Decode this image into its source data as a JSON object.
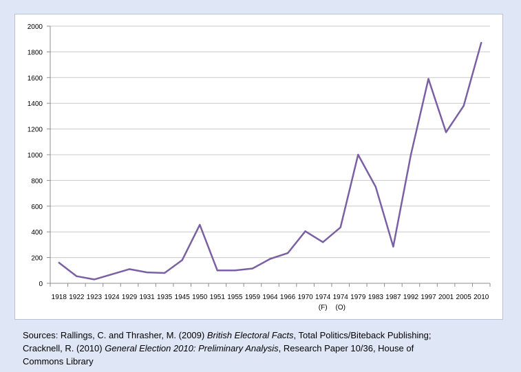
{
  "chart_data": {
    "type": "line",
    "title": "",
    "xlabel": "",
    "ylabel": "",
    "ylim": [
      0,
      2000
    ],
    "yticks": [
      0,
      200,
      400,
      600,
      800,
      1000,
      1200,
      1400,
      1600,
      1800,
      2000
    ],
    "grid": true,
    "legend": "none",
    "categories": [
      "1918",
      "1922",
      "1923",
      "1924",
      "1929",
      "1931",
      "1935",
      "1945",
      "1950",
      "1951",
      "1955",
      "1959",
      "1964",
      "1966",
      "1970",
      "1974",
      "1974",
      "1979",
      "1983",
      "1987",
      "1992",
      "1997",
      "2001",
      "2005",
      "2010"
    ],
    "category_sublabels": [
      "",
      "",
      "",
      "",
      "",
      "",
      "",
      "",
      "",
      "",
      "",
      "",
      "",
      "",
      "",
      "(F)",
      "(O)",
      "",
      "",
      "",
      "",
      "",
      "",
      "",
      ""
    ],
    "series": [
      {
        "values": [
          160,
          55,
          30,
          70,
          110,
          85,
          80,
          180,
          455,
          100,
          100,
          115,
          190,
          235,
          405,
          320,
          435,
          1000,
          750,
          285,
          1000,
          1590,
          1175,
          1380,
          1870
        ]
      }
    ],
    "line_color": "#7b5fa4",
    "grid_color": "#c8c8c8"
  },
  "source": {
    "line1_pre": "Sources: Rallings, C. and Thrasher, M. (2009) ",
    "line1_italic": "British Electoral Facts",
    "line1_post": ", Total Politics/Biteback Publishing;",
    "line2_pre": "Cracknell, R. (2010) ",
    "line2_italic": "General Election 2010: Preliminary Analysis",
    "line2_post": ", Research Paper 10/36, House of",
    "line3": "Commons Library"
  }
}
